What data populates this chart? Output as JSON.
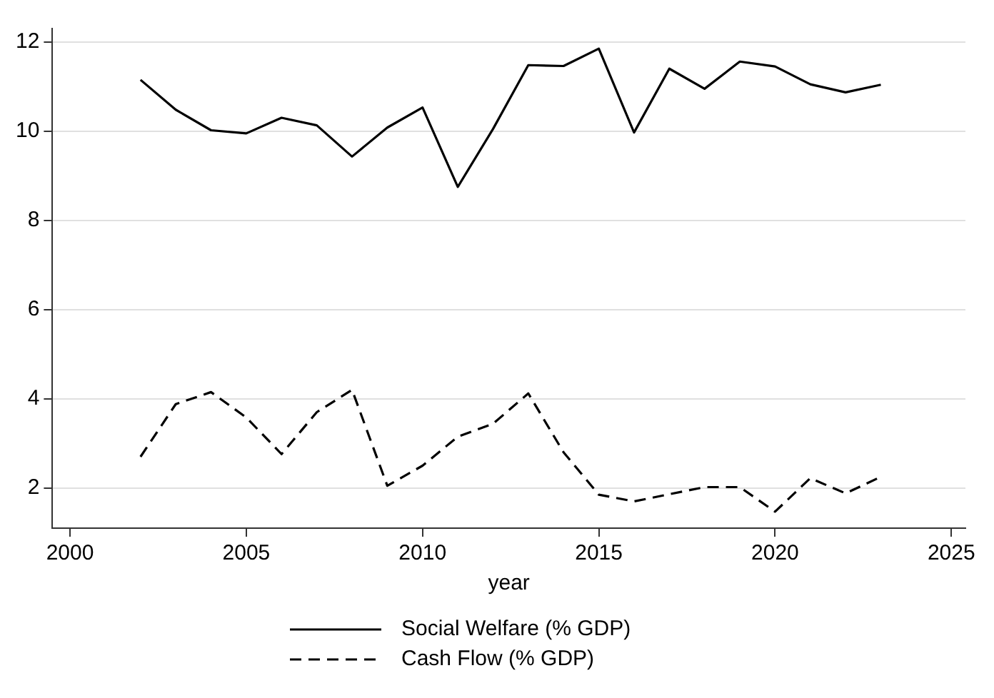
{
  "chart_data": {
    "type": "line",
    "xlabel": "year",
    "x": [
      2002,
      2003,
      2004,
      2005,
      2006,
      2007,
      2008,
      2009,
      2010,
      2011,
      2012,
      2013,
      2014,
      2015,
      2016,
      2017,
      2018,
      2019,
      2020,
      2021,
      2022,
      2023
    ],
    "xlim": [
      1999.5,
      2025.4
    ],
    "xticks": [
      2000,
      2005,
      2010,
      2015,
      2020,
      2025
    ],
    "ylim": [
      1.1,
      12.3
    ],
    "yticks": [
      2,
      4,
      6,
      8,
      10,
      12
    ],
    "grid": "y",
    "legend": "bottom",
    "marker": "none",
    "series": [
      {
        "name": "Social Welfare (% GDP)",
        "color": "#000000",
        "line_style": "solid",
        "values": [
          11.15,
          10.48,
          10.02,
          9.95,
          10.3,
          10.13,
          9.43,
          10.08,
          10.53,
          8.75,
          10.05,
          11.48,
          11.46,
          11.85,
          9.97,
          11.4,
          10.95,
          11.56,
          11.45,
          11.05,
          10.87,
          11.04
        ]
      },
      {
        "name": "Cash Flow (% GDP)",
        "color": "#000000",
        "line_style": "dashed",
        "values": [
          2.7,
          3.88,
          4.15,
          3.58,
          2.76,
          3.7,
          4.2,
          2.05,
          2.5,
          3.15,
          3.44,
          4.12,
          2.8,
          1.85,
          1.7,
          1.86,
          2.02,
          2.02,
          1.47,
          2.22,
          1.88,
          2.25
        ]
      }
    ]
  }
}
